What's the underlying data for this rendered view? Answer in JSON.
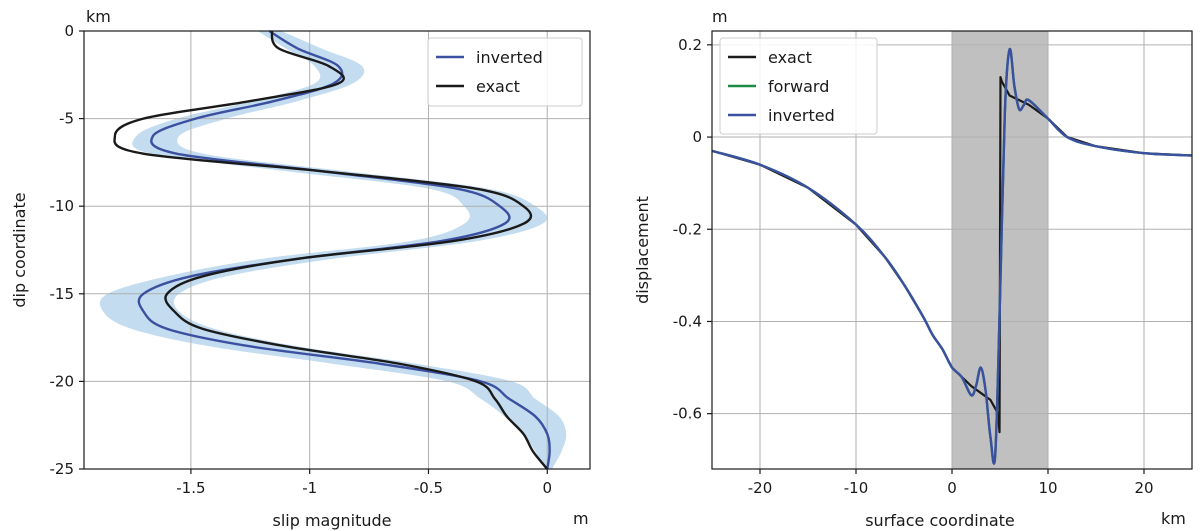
{
  "chart_data": [
    {
      "type": "line",
      "orientation": "vertical-profile",
      "xlabel": "slip magnitude",
      "ylabel": "dip coordinate",
      "x_unit": "m",
      "y_unit": "km",
      "xlim": [
        -1.95,
        0.18
      ],
      "ylim": [
        -25,
        0
      ],
      "xticks": [
        -1.5,
        -1,
        -0.5,
        0
      ],
      "xtick_labels": [
        "-1.5",
        "-1",
        "-0.5",
        "0"
      ],
      "yticks": [
        0,
        -5,
        -10,
        -15,
        -20,
        -25
      ],
      "ytick_labels": [
        "0",
        "-5",
        "-10",
        "-15",
        "-20",
        "-25"
      ],
      "grid": true,
      "legend_position": "top-right",
      "band": {
        "color": "#c3dcef",
        "y": [
          0,
          -1,
          -2,
          -3,
          -4,
          -5,
          -6,
          -7,
          -8,
          -9,
          -10,
          -11,
          -12,
          -13,
          -14,
          -15,
          -16,
          -17,
          -18,
          -19,
          -20,
          -21,
          -22,
          -23,
          -24,
          -25
        ],
        "x_low": [
          -1.22,
          -1.1,
          -0.98,
          -0.98,
          -1.24,
          -1.56,
          -1.73,
          -1.67,
          -1.1,
          -0.5,
          -0.35,
          -0.35,
          -0.58,
          -1.2,
          -1.6,
          -1.85,
          -1.87,
          -1.75,
          -1.42,
          -0.9,
          -0.42,
          -0.28,
          -0.18,
          -0.1,
          -0.05,
          -0.01
        ],
        "x_high": [
          -1.12,
          -0.95,
          -0.78,
          -0.82,
          -1.05,
          -1.35,
          -1.55,
          -1.45,
          -0.85,
          -0.25,
          -0.05,
          -0.02,
          -0.3,
          -0.9,
          -1.35,
          -1.55,
          -1.55,
          -1.4,
          -1.05,
          -0.55,
          -0.15,
          -0.05,
          0.05,
          0.08,
          0.06,
          0.02
        ]
      },
      "series": [
        {
          "name": "inverted",
          "color": "#3b50a0",
          "y": [
            0,
            -1,
            -2,
            -3,
            -4,
            -5,
            -6,
            -7,
            -8,
            -9,
            -10,
            -11,
            -12,
            -13,
            -14,
            -15,
            -16,
            -17,
            -18,
            -19,
            -20,
            -21,
            -22,
            -23,
            -24,
            -25
          ],
          "x": [
            -1.17,
            -1.05,
            -0.88,
            -0.9,
            -1.15,
            -1.48,
            -1.66,
            -1.56,
            -0.95,
            -0.38,
            -0.2,
            -0.18,
            -0.45,
            -1.05,
            -1.5,
            -1.7,
            -1.7,
            -1.6,
            -1.25,
            -0.7,
            -0.28,
            -0.16,
            -0.05,
            0.0,
            0.01,
            0.0
          ]
        },
        {
          "name": "exact",
          "color": "#1a1a1a",
          "y": [
            0,
            -1,
            -2,
            -3,
            -4,
            -5,
            -6,
            -7,
            -8,
            -9,
            -10,
            -11,
            -12,
            -13,
            -14,
            -15,
            -16,
            -17,
            -18,
            -19,
            -20,
            -21,
            -22,
            -23,
            -24,
            -25
          ],
          "x": [
            -1.16,
            -1.13,
            -0.92,
            -0.88,
            -1.25,
            -1.7,
            -1.82,
            -1.7,
            -0.95,
            -0.3,
            -0.1,
            -0.1,
            -0.4,
            -1.05,
            -1.45,
            -1.6,
            -1.57,
            -1.45,
            -1.1,
            -0.62,
            -0.3,
            -0.22,
            -0.17,
            -0.1,
            -0.06,
            0.0
          ]
        }
      ]
    },
    {
      "type": "line",
      "xlabel": "surface coordinate",
      "ylabel": "displacement",
      "x_unit": "km",
      "y_unit": "m",
      "xlim": [
        -25,
        25
      ],
      "ylim": [
        -0.72,
        0.23
      ],
      "xticks": [
        -20,
        -10,
        0,
        10,
        20
      ],
      "xtick_labels": [
        "-20",
        "-10",
        "0",
        "10",
        "20"
      ],
      "yticks": [
        0.2,
        0,
        -0.2,
        -0.4,
        -0.6
      ],
      "ytick_labels": [
        "0.2",
        "0",
        "-0.2",
        "-0.4",
        "-0.6"
      ],
      "grid": true,
      "legend_position": "top-left",
      "shaded_region": {
        "x": [
          0,
          10
        ],
        "color": "#c0c0c0"
      },
      "series": [
        {
          "name": "exact",
          "color": "#1a1a1a",
          "x": [
            -25,
            -20,
            -15,
            -10,
            -7,
            -5,
            -3,
            -2,
            -1,
            0,
            1,
            2,
            3,
            4,
            4.8,
            4.95,
            5.05,
            5.2,
            6,
            7,
            8,
            10,
            12,
            15,
            20,
            25
          ],
          "y": [
            -0.03,
            -0.06,
            -0.11,
            -0.19,
            -0.26,
            -0.32,
            -0.39,
            -0.43,
            -0.46,
            -0.5,
            -0.52,
            -0.54,
            -0.555,
            -0.57,
            -0.6,
            -0.64,
            0.13,
            0.12,
            0.09,
            0.08,
            0.07,
            0.04,
            0.0,
            -0.02,
            -0.035,
            -0.04
          ]
        },
        {
          "name": "forward",
          "color": "#1e8b45",
          "x": [
            -25,
            -20,
            -15,
            -10,
            -7,
            -5,
            -3,
            -2,
            -1,
            0,
            1,
            2,
            2.5,
            3,
            3.5,
            4,
            4.5,
            5,
            5.5,
            6,
            6.5,
            7,
            7.5,
            8,
            10,
            12,
            15,
            20,
            25
          ],
          "y": [
            -0.03,
            -0.06,
            -0.11,
            -0.19,
            -0.26,
            -0.32,
            -0.39,
            -0.43,
            -0.46,
            -0.5,
            -0.52,
            -0.56,
            -0.54,
            -0.5,
            -0.55,
            -0.65,
            -0.69,
            -0.35,
            0.05,
            0.19,
            0.11,
            0.06,
            0.07,
            0.08,
            0.04,
            0.0,
            -0.02,
            -0.035,
            -0.04
          ]
        },
        {
          "name": "inverted",
          "color": "#3b50a0",
          "x": [
            -25,
            -20,
            -15,
            -10,
            -7,
            -5,
            -3,
            -2,
            -1,
            0,
            1,
            2,
            2.5,
            3,
            3.5,
            4,
            4.5,
            5,
            5.5,
            6,
            6.5,
            7,
            7.5,
            8,
            10,
            12,
            15,
            20,
            25
          ],
          "y": [
            -0.03,
            -0.06,
            -0.11,
            -0.19,
            -0.26,
            -0.32,
            -0.39,
            -0.43,
            -0.46,
            -0.5,
            -0.52,
            -0.56,
            -0.54,
            -0.5,
            -0.55,
            -0.65,
            -0.69,
            -0.35,
            0.05,
            0.19,
            0.11,
            0.06,
            0.07,
            0.08,
            0.04,
            0.0,
            -0.02,
            -0.035,
            -0.04
          ]
        }
      ]
    }
  ]
}
